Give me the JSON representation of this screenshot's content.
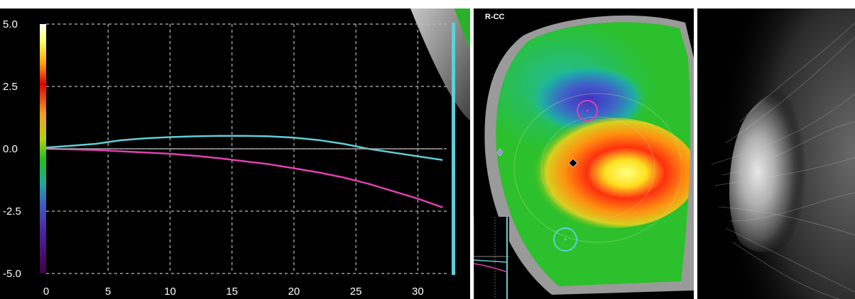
{
  "chart_data": {
    "type": "line",
    "title": "",
    "xlabel": "",
    "ylabel": "",
    "xlim": [
      0,
      32.5
    ],
    "ylim": [
      -5.0,
      5.0
    ],
    "x_ticks": [
      "0",
      "5",
      "10",
      "15",
      "20",
      "25",
      "30"
    ],
    "y_ticks": [
      "5.0",
      "2.5",
      "0.0",
      "-2.5",
      "-5.0"
    ],
    "grid": true,
    "colorbar": {
      "min": -5.0,
      "max": 5.0
    },
    "series": [
      {
        "color": "#5fcfd6",
        "x": [
          0,
          2,
          4,
          6,
          8,
          10,
          12,
          14,
          16,
          18,
          20,
          22,
          24,
          26,
          28,
          30,
          32
        ],
        "y": [
          0.05,
          0.12,
          0.2,
          0.34,
          0.42,
          0.47,
          0.5,
          0.52,
          0.52,
          0.5,
          0.45,
          0.35,
          0.2,
          0.0,
          -0.15,
          -0.3,
          -0.45
        ]
      },
      {
        "color": "#e040b0",
        "x": [
          0,
          2,
          4,
          6,
          8,
          10,
          12,
          14,
          16,
          18,
          20,
          22,
          24,
          26,
          28,
          30,
          32
        ],
        "y": [
          0.0,
          -0.02,
          -0.05,
          -0.1,
          -0.15,
          -0.2,
          -0.28,
          -0.38,
          -0.5,
          -0.62,
          -0.78,
          -0.95,
          -1.15,
          -1.4,
          -1.7,
          -2.0,
          -2.35
        ]
      },
      {
        "color": "#a0a0a0",
        "x": [
          0,
          32
        ],
        "y": [
          0.0,
          0.0
        ]
      }
    ]
  },
  "map_view": {
    "label": "R-CC"
  }
}
